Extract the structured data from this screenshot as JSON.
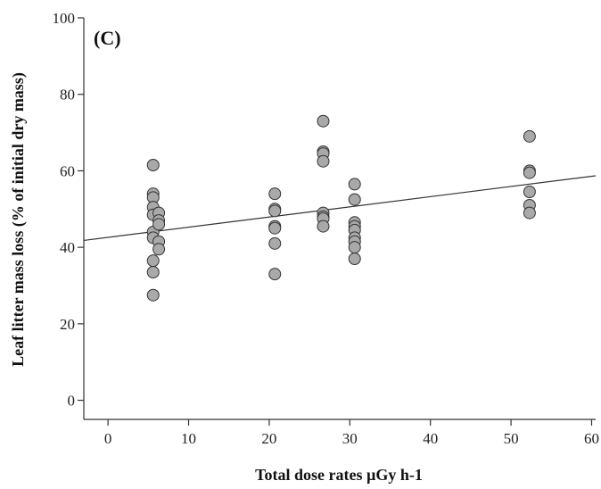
{
  "chart_data": {
    "type": "scatter",
    "panel_label": "(C)",
    "xlabel": "Total dose rates µGy h-1",
    "ylabel": "Leaf litter mass loss (% of initial dry mass)",
    "xlim": [
      -3,
      60.5
    ],
    "ylim": [
      -5,
      100
    ],
    "xticks": [
      0,
      10,
      20,
      30,
      40,
      50,
      60
    ],
    "yticks": [
      0,
      20,
      40,
      60,
      80,
      100
    ],
    "grid": false,
    "legend": "none",
    "marker_fill": "#a9a9a9",
    "marker_edge": "#333333",
    "points": [
      {
        "x": 5.6,
        "y": 61.5
      },
      {
        "x": 5.6,
        "y": 54.0
      },
      {
        "x": 5.6,
        "y": 53.0
      },
      {
        "x": 5.6,
        "y": 50.5
      },
      {
        "x": 5.6,
        "y": 48.5
      },
      {
        "x": 5.6,
        "y": 44.0
      },
      {
        "x": 5.6,
        "y": 42.5
      },
      {
        "x": 5.6,
        "y": 36.5
      },
      {
        "x": 5.6,
        "y": 33.5
      },
      {
        "x": 5.6,
        "y": 27.5
      },
      {
        "x": 6.3,
        "y": 49.0
      },
      {
        "x": 6.3,
        "y": 47.0
      },
      {
        "x": 6.3,
        "y": 46.0
      },
      {
        "x": 6.3,
        "y": 41.5
      },
      {
        "x": 6.3,
        "y": 39.5
      },
      {
        "x": 20.7,
        "y": 54.0
      },
      {
        "x": 20.7,
        "y": 50.0
      },
      {
        "x": 20.7,
        "y": 49.5
      },
      {
        "x": 20.7,
        "y": 45.5
      },
      {
        "x": 20.7,
        "y": 45.0
      },
      {
        "x": 20.7,
        "y": 41.0
      },
      {
        "x": 20.7,
        "y": 33.0
      },
      {
        "x": 26.7,
        "y": 73.0
      },
      {
        "x": 26.7,
        "y": 65.0
      },
      {
        "x": 26.7,
        "y": 64.5
      },
      {
        "x": 26.7,
        "y": 62.5
      },
      {
        "x": 26.7,
        "y": 49.0
      },
      {
        "x": 26.7,
        "y": 48.0
      },
      {
        "x": 26.7,
        "y": 47.5
      },
      {
        "x": 26.7,
        "y": 45.5
      },
      {
        "x": 30.6,
        "y": 56.5
      },
      {
        "x": 30.6,
        "y": 52.5
      },
      {
        "x": 30.6,
        "y": 46.5
      },
      {
        "x": 30.6,
        "y": 45.5
      },
      {
        "x": 30.6,
        "y": 44.5
      },
      {
        "x": 30.6,
        "y": 42.5
      },
      {
        "x": 30.6,
        "y": 41.5
      },
      {
        "x": 30.6,
        "y": 40.0
      },
      {
        "x": 30.6,
        "y": 37.0
      },
      {
        "x": 52.3,
        "y": 69.0
      },
      {
        "x": 52.3,
        "y": 60.0
      },
      {
        "x": 52.3,
        "y": 59.5
      },
      {
        "x": 52.3,
        "y": 54.5
      },
      {
        "x": 52.3,
        "y": 51.0
      },
      {
        "x": 52.3,
        "y": 49.0
      }
    ],
    "fit_line": {
      "x0": -3,
      "y0": 41.8,
      "x1": 60.5,
      "y1": 58.7
    }
  }
}
